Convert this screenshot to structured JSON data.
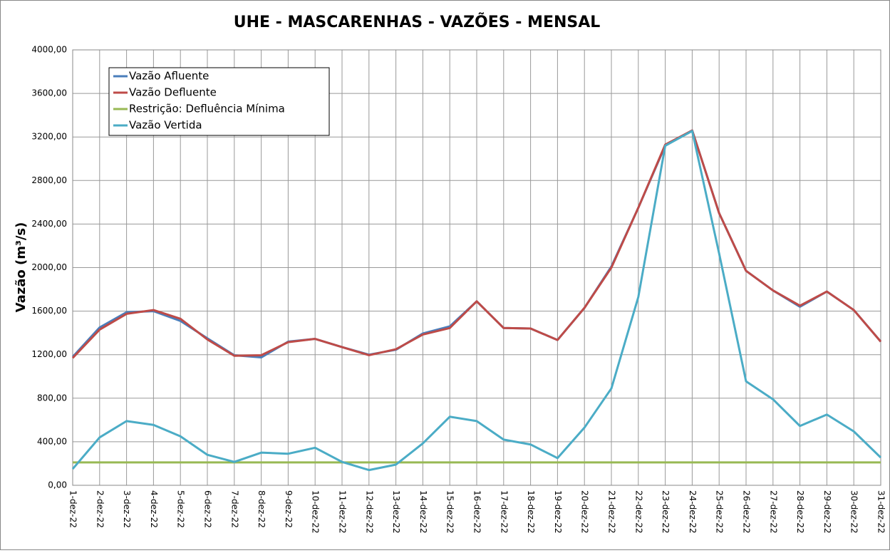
{
  "chart_data": {
    "type": "line",
    "title": "UHE - MASCARENHAS - VAZÕES - MENSAL",
    "y_label": "Vazão (m³/s)",
    "categories": [
      "1-dez-22",
      "2-dez-22",
      "3-dez-22",
      "4-dez-22",
      "5-dez-22",
      "6-dez-22",
      "7-dez-22",
      "8-dez-22",
      "9-dez-22",
      "10-dez-22",
      "11-dez-22",
      "12-dez-22",
      "13-dez-22",
      "14-dez-22",
      "15-dez-22",
      "16-dez-22",
      "17-dez-22",
      "18-dez-22",
      "19-dez-22",
      "20-dez-22",
      "21-dez-22",
      "22-dez-22",
      "23-dez-22",
      "24-dez-22",
      "25-dez-22",
      "26-dez-22",
      "27-dez-22",
      "28-dez-22",
      "29-dez-22",
      "30-dez-22",
      "31-dez-22"
    ],
    "series": [
      {
        "name": "Vazão Afluente",
        "color": "#4a7ebb",
        "values": [
          1180,
          1450,
          1590,
          1600,
          1510,
          1350,
          1195,
          1175,
          1320,
          1345,
          1270,
          1200,
          1245,
          1395,
          1460,
          1690,
          1445,
          1440,
          1335,
          1630,
          2010,
          2550,
          3120,
          3260,
          2500,
          1970,
          1790,
          1640,
          1780,
          1610,
          1320
        ]
      },
      {
        "name": "Vazão Defluente",
        "color": "#be4b48",
        "values": [
          1170,
          1430,
          1575,
          1610,
          1530,
          1340,
          1190,
          1195,
          1315,
          1345,
          1270,
          1195,
          1250,
          1385,
          1445,
          1690,
          1445,
          1440,
          1335,
          1630,
          2000,
          2550,
          3130,
          3260,
          2500,
          1970,
          1790,
          1650,
          1780,
          1610,
          1320
        ]
      },
      {
        "name": "Restrição: Defluência Mínima",
        "color": "#98b954",
        "values": [
          210,
          210,
          210,
          210,
          210,
          210,
          210,
          210,
          210,
          210,
          210,
          210,
          210,
          210,
          210,
          210,
          210,
          210,
          210,
          210,
          210,
          210,
          210,
          210,
          210,
          210,
          210,
          210,
          210,
          210,
          210
        ]
      },
      {
        "name": "Vazão Vertida",
        "color": "#4bacc6",
        "values": [
          150,
          440,
          590,
          555,
          450,
          280,
          215,
          300,
          290,
          345,
          215,
          140,
          190,
          385,
          630,
          590,
          420,
          375,
          250,
          530,
          890,
          1730,
          3120,
          3255,
          2130,
          955,
          790,
          545,
          650,
          495,
          255
        ]
      }
    ],
    "ylim": [
      0,
      4000
    ],
    "yticks": [
      {
        "value": 0,
        "label": "0,00"
      },
      {
        "value": 400,
        "label": "400,00"
      },
      {
        "value": 800,
        "label": "800,00"
      },
      {
        "value": 1200,
        "label": "1200,00"
      },
      {
        "value": 1600,
        "label": "1600,00"
      },
      {
        "value": 2000,
        "label": "2000,00"
      },
      {
        "value": 2400,
        "label": "2400,00"
      },
      {
        "value": 2800,
        "label": "2800,00"
      },
      {
        "value": 3200,
        "label": "3200,00"
      },
      {
        "value": 3600,
        "label": "3600,00"
      },
      {
        "value": 4000,
        "label": "4000,00"
      }
    ],
    "grid": true,
    "legend": "upper left"
  }
}
